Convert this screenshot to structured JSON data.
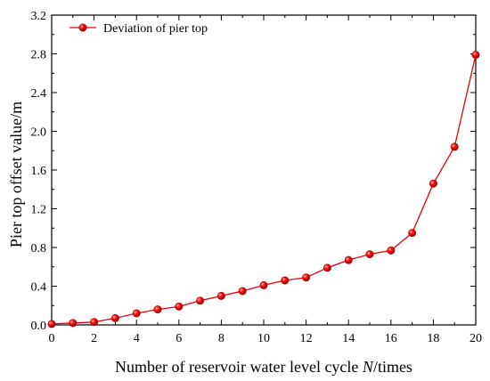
{
  "chart_data": {
    "type": "line",
    "xlabel_prefix": "Number of reservoir water level cycle ",
    "xlabel_var": "N",
    "xlabel_suffix": "/times",
    "ylabel": "Pier top offset value/m",
    "xlim": [
      0,
      20
    ],
    "ylim": [
      0,
      3.2
    ],
    "x_ticks": [
      "0",
      "2",
      "4",
      "6",
      "8",
      "10",
      "12",
      "14",
      "16",
      "18",
      "20"
    ],
    "y_ticks": [
      "0.0",
      "0.4",
      "0.8",
      "1.2",
      "1.6",
      "2.0",
      "2.4",
      "2.8",
      "3.2"
    ],
    "grid": false,
    "legend_position": "top-left",
    "series": [
      {
        "name": "Deviation of pier top",
        "color": "#e8000b",
        "x": [
          0,
          1,
          2,
          3,
          4,
          5,
          6,
          7,
          8,
          9,
          10,
          11,
          12,
          13,
          14,
          15,
          16,
          17,
          18,
          19,
          20
        ],
        "y": [
          0.01,
          0.02,
          0.03,
          0.07,
          0.12,
          0.16,
          0.19,
          0.25,
          0.3,
          0.35,
          0.41,
          0.46,
          0.49,
          0.59,
          0.67,
          0.73,
          0.77,
          0.95,
          1.46,
          1.84,
          2.79
        ]
      }
    ]
  }
}
